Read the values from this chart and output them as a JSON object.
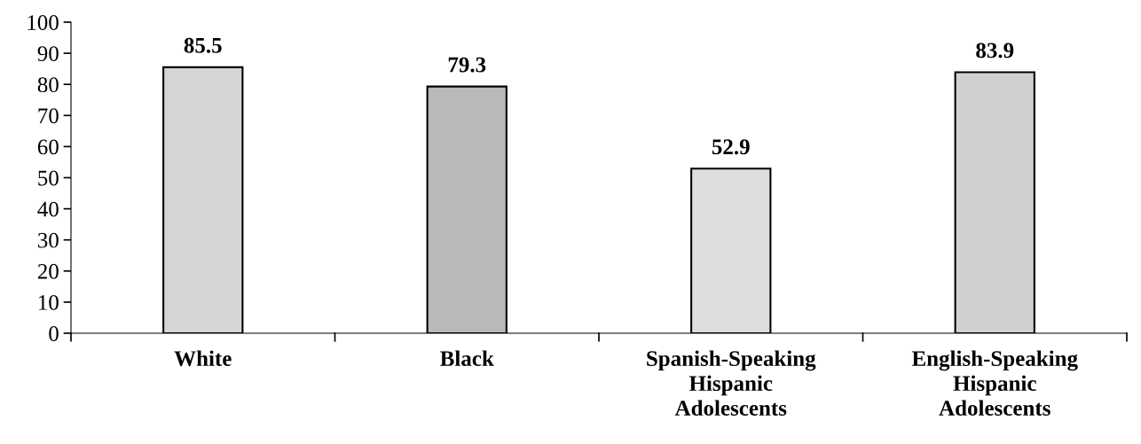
{
  "chart_data": {
    "type": "bar",
    "categories": [
      "White",
      "Black",
      "Spanish-Speaking\nHispanic\nAdolescents",
      "English-Speaking\nHispanic\nAdolescents"
    ],
    "values": [
      85.5,
      79.3,
      52.9,
      83.9
    ],
    "colors": [
      "#d6d6d6",
      "#b9b9b9",
      "#dedede",
      "#d0d0d0"
    ],
    "ylim": [
      0,
      100
    ],
    "yticks": [
      0,
      10,
      20,
      30,
      40,
      50,
      60,
      70,
      80,
      90,
      100
    ],
    "data_labels": true,
    "grid": false,
    "legend": false
  }
}
